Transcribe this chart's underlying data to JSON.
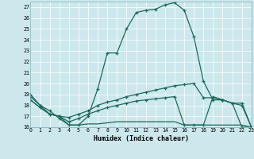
{
  "xlabel": "Humidex (Indice chaleur)",
  "background_color": "#cce8ed",
  "grid_color": "#b0cdd4",
  "line_color": "#1a6b5a",
  "xlim": [
    0,
    23
  ],
  "ylim": [
    16,
    27.5
  ],
  "yticks": [
    16,
    17,
    18,
    19,
    20,
    21,
    22,
    23,
    24,
    25,
    26,
    27
  ],
  "xticks": [
    0,
    1,
    2,
    3,
    4,
    5,
    6,
    7,
    8,
    9,
    10,
    11,
    12,
    13,
    14,
    15,
    16,
    17,
    18,
    19,
    20,
    21,
    22,
    23
  ],
  "curve1_x": [
    0,
    1,
    2,
    3,
    4,
    5,
    6,
    7,
    8,
    9,
    10,
    11,
    12,
    13,
    14,
    15,
    16,
    17,
    18,
    19,
    20,
    21,
    22,
    23
  ],
  "curve1_y": [
    19.0,
    18.0,
    17.5,
    16.8,
    16.2,
    16.2,
    17.0,
    19.5,
    22.8,
    22.8,
    25.0,
    26.5,
    26.7,
    26.8,
    27.2,
    27.4,
    26.7,
    24.3,
    20.2,
    18.5,
    18.5,
    18.2,
    16.0,
    16.0
  ],
  "curve2_x": [
    0,
    1,
    2,
    3,
    4,
    5,
    6,
    7,
    8,
    9,
    10,
    11,
    12,
    13,
    14,
    15,
    16,
    17,
    18,
    19,
    20,
    21,
    22,
    23
  ],
  "curve2_y": [
    18.8,
    18.0,
    17.2,
    17.0,
    16.9,
    17.2,
    17.5,
    18.0,
    18.3,
    18.5,
    18.8,
    19.0,
    19.2,
    19.4,
    19.6,
    19.8,
    19.9,
    20.0,
    18.7,
    18.7,
    18.5,
    18.2,
    18.2,
    16.0
  ],
  "curve3_x": [
    0,
    1,
    2,
    3,
    4,
    5,
    6,
    7,
    8,
    9,
    10,
    11,
    12,
    13,
    14,
    15,
    16,
    17,
    18,
    19,
    20,
    21,
    22,
    23
  ],
  "curve3_y": [
    18.5,
    17.8,
    17.2,
    17.0,
    16.5,
    16.8,
    17.2,
    17.5,
    17.8,
    18.0,
    18.2,
    18.4,
    18.5,
    18.6,
    18.7,
    18.8,
    16.2,
    16.2,
    16.2,
    18.8,
    18.5,
    18.2,
    18.0,
    16.0
  ],
  "curve4_x": [
    0,
    1,
    2,
    3,
    4,
    5,
    6,
    7,
    8,
    9,
    10,
    11,
    12,
    13,
    14,
    15,
    16,
    17,
    18,
    19,
    20,
    21,
    22,
    23
  ],
  "curve4_y": [
    18.5,
    17.8,
    17.2,
    17.0,
    16.2,
    16.2,
    16.3,
    16.3,
    16.4,
    16.5,
    16.5,
    16.5,
    16.5,
    16.5,
    16.5,
    16.5,
    16.2,
    16.2,
    16.2,
    16.2,
    16.2,
    16.2,
    16.2,
    16.0
  ]
}
